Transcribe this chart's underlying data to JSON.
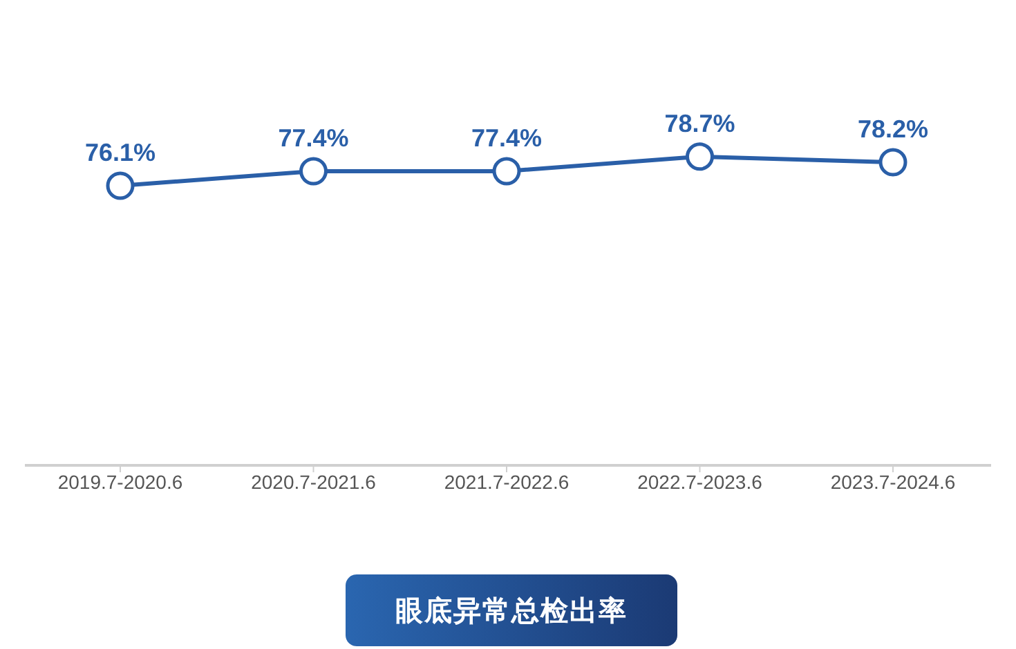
{
  "chart_data": {
    "type": "line",
    "title": "眼底异常总检出率",
    "categories": [
      "2019.7-2020.6",
      "2020.7-2021.6",
      "2021.7-2022.6",
      "2022.7-2023.6",
      "2023.7-2024.6"
    ],
    "series": [
      {
        "color": "#2a5fa8",
        "values": [
          76.1,
          77.4,
          77.4,
          78.7,
          78.2
        ],
        "value_labels": [
          "76.1%",
          "77.4%",
          "77.4%",
          "78.7%",
          "78.2%"
        ]
      }
    ],
    "tick_labels": "x",
    "grid": false,
    "marker": "circle",
    "line_style": "solid"
  }
}
